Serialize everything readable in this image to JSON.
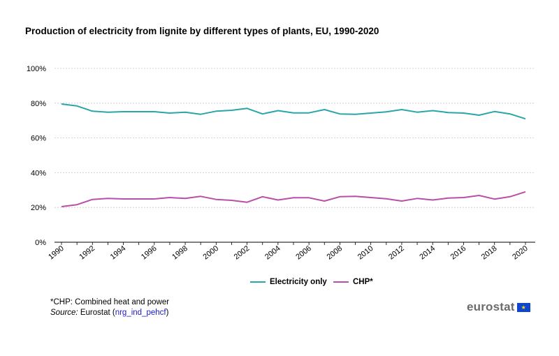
{
  "chart_data": {
    "type": "line",
    "title": "Production of electricity from lignite by different types of plants, EU, 1990-2020",
    "x": [
      1990,
      1991,
      1992,
      1993,
      1994,
      1995,
      1996,
      1997,
      1998,
      1999,
      2000,
      2001,
      2002,
      2003,
      2004,
      2005,
      2006,
      2007,
      2008,
      2009,
      2010,
      2011,
      2012,
      2013,
      2014,
      2015,
      2016,
      2017,
      2018,
      2019,
      2020
    ],
    "x_tick_labels": [
      "1990",
      "1992",
      "1994",
      "1996",
      "1998",
      "2000",
      "2002",
      "2004",
      "2006",
      "2008",
      "2010",
      "2012",
      "2014",
      "2016",
      "2018",
      "2020"
    ],
    "y_tick_labels": [
      "0%",
      "20%",
      "40%",
      "60%",
      "80%",
      "100%"
    ],
    "ylim": [
      0,
      100
    ],
    "grid": true,
    "legend_placement": "bottom",
    "series": [
      {
        "name": "Electricity only",
        "color": "#2aa5a8",
        "values": [
          79.5,
          78.4,
          75.4,
          74.8,
          75.1,
          75.1,
          75.1,
          74.3,
          74.8,
          73.6,
          75.4,
          75.9,
          77.0,
          73.8,
          75.7,
          74.4,
          74.4,
          76.3,
          73.8,
          73.6,
          74.3,
          75.0,
          76.3,
          74.8,
          75.7,
          74.6,
          74.3,
          73.1,
          75.2,
          73.8,
          71.0
        ]
      },
      {
        "name": "CHP*",
        "color": "#b84fa8",
        "values": [
          20.5,
          21.6,
          24.6,
          25.2,
          24.9,
          24.9,
          24.9,
          25.7,
          25.2,
          26.4,
          24.6,
          24.1,
          23.0,
          26.2,
          24.3,
          25.6,
          25.6,
          23.7,
          26.2,
          26.4,
          25.7,
          25.0,
          23.7,
          25.2,
          24.3,
          25.4,
          25.7,
          26.9,
          24.8,
          26.2,
          29.0
        ]
      }
    ]
  },
  "footnote": {
    "chp": "*CHP: Combined heat and power",
    "source_label": "Source:",
    "source_publisher": "Eurostat (",
    "source_code": "nrg_ind_pehcf",
    "source_close": ")"
  },
  "logo": {
    "text": "eurostat"
  }
}
